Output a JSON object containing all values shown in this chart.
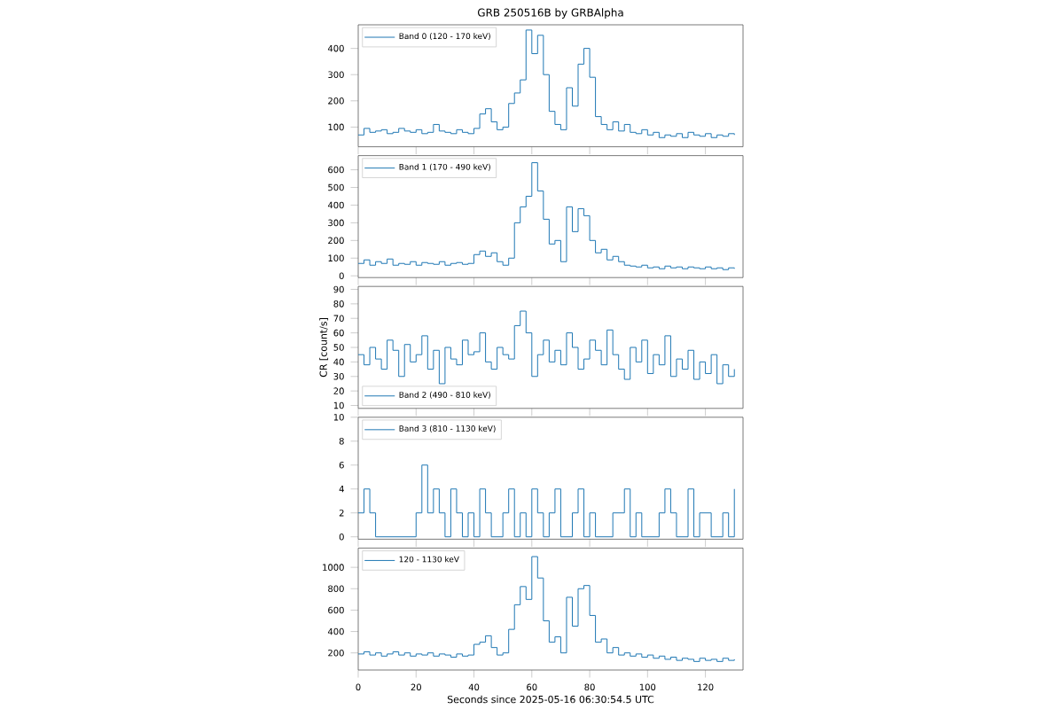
{
  "chart_data": [
    {
      "type": "step",
      "title": "GRB 250516B by GRBAlpha",
      "x": [
        0,
        2,
        4,
        6,
        8,
        10,
        12,
        14,
        16,
        18,
        20,
        22,
        24,
        26,
        28,
        30,
        32,
        34,
        36,
        38,
        40,
        42,
        44,
        46,
        48,
        50,
        52,
        54,
        56,
        58,
        60,
        62,
        64,
        66,
        68,
        70,
        72,
        74,
        76,
        78,
        80,
        82,
        84,
        86,
        88,
        90,
        92,
        94,
        96,
        98,
        100,
        102,
        104,
        106,
        108,
        110,
        112,
        114,
        116,
        118,
        120,
        122,
        124,
        126,
        128,
        130
      ],
      "series": [
        {
          "name": "Band 0 (120 - 170 keV)",
          "color": "#1f77b4",
          "values": [
            70,
            95,
            80,
            85,
            90,
            75,
            80,
            95,
            85,
            80,
            90,
            75,
            80,
            110,
            85,
            80,
            75,
            90,
            80,
            75,
            95,
            150,
            170,
            120,
            90,
            100,
            190,
            230,
            280,
            470,
            380,
            450,
            300,
            160,
            110,
            90,
            250,
            180,
            340,
            400,
            290,
            140,
            110,
            90,
            120,
            85,
            110,
            80,
            75,
            90,
            70,
            80,
            60,
            70,
            65,
            75,
            60,
            80,
            70,
            65,
            75,
            60,
            70,
            65,
            75,
            70
          ]
        }
      ],
      "xlim": [
        0,
        133
      ],
      "xticks": [
        0,
        20,
        40,
        60,
        80,
        100,
        120
      ],
      "ylim": [
        25,
        490
      ],
      "yticks": [
        100,
        200,
        300,
        400
      ],
      "legend": "top left",
      "tick_labels": "y"
    },
    {
      "type": "step",
      "x": [
        0,
        2,
        4,
        6,
        8,
        10,
        12,
        14,
        16,
        18,
        20,
        22,
        24,
        26,
        28,
        30,
        32,
        34,
        36,
        38,
        40,
        42,
        44,
        46,
        48,
        50,
        52,
        54,
        56,
        58,
        60,
        62,
        64,
        66,
        68,
        70,
        72,
        74,
        76,
        78,
        80,
        82,
        84,
        86,
        88,
        90,
        92,
        94,
        96,
        98,
        100,
        102,
        104,
        106,
        108,
        110,
        112,
        114,
        116,
        118,
        120,
        122,
        124,
        126,
        128,
        130
      ],
      "series": [
        {
          "name": "Band 1 (170 - 490 keV)",
          "color": "#1f77b4",
          "values": [
            70,
            90,
            60,
            80,
            70,
            95,
            60,
            70,
            65,
            80,
            60,
            75,
            70,
            65,
            80,
            60,
            70,
            75,
            65,
            70,
            120,
            140,
            110,
            130,
            80,
            60,
            100,
            300,
            390,
            450,
            640,
            480,
            320,
            180,
            200,
            80,
            390,
            250,
            380,
            340,
            200,
            130,
            150,
            90,
            110,
            80,
            60,
            55,
            50,
            60,
            45,
            50,
            40,
            55,
            45,
            50,
            40,
            50,
            45,
            40,
            50,
            40,
            45,
            35,
            45,
            40
          ]
        }
      ],
      "xlim": [
        0,
        133
      ],
      "xticks": [
        0,
        20,
        40,
        60,
        80,
        100,
        120
      ],
      "ylim": [
        -10,
        680
      ],
      "yticks": [
        0,
        100,
        200,
        300,
        400,
        500,
        600
      ],
      "legend": "top left",
      "tick_labels": "y"
    },
    {
      "type": "step",
      "ylabel": "CR [count/s]",
      "x": [
        0,
        2,
        4,
        6,
        8,
        10,
        12,
        14,
        16,
        18,
        20,
        22,
        24,
        26,
        28,
        30,
        32,
        34,
        36,
        38,
        40,
        42,
        44,
        46,
        48,
        50,
        52,
        54,
        56,
        58,
        60,
        62,
        64,
        66,
        68,
        70,
        72,
        74,
        76,
        78,
        80,
        82,
        84,
        86,
        88,
        90,
        92,
        94,
        96,
        98,
        100,
        102,
        104,
        106,
        108,
        110,
        112,
        114,
        116,
        118,
        120,
        122,
        124,
        126,
        128,
        130
      ],
      "series": [
        {
          "name": "Band 2 (490 - 810 keV)",
          "color": "#1f77b4",
          "values": [
            45,
            38,
            50,
            42,
            35,
            55,
            48,
            30,
            52,
            40,
            45,
            58,
            35,
            48,
            25,
            50,
            42,
            38,
            55,
            45,
            47,
            60,
            40,
            35,
            50,
            45,
            42,
            65,
            75,
            60,
            30,
            45,
            55,
            40,
            48,
            38,
            60,
            50,
            35,
            42,
            55,
            48,
            38,
            62,
            45,
            35,
            28,
            50,
            40,
            55,
            32,
            45,
            38,
            58,
            30,
            42,
            35,
            48,
            28,
            40,
            32,
            45,
            25,
            38,
            30,
            35
          ]
        }
      ],
      "xlim": [
        0,
        133
      ],
      "xticks": [
        0,
        20,
        40,
        60,
        80,
        100,
        120
      ],
      "ylim": [
        8,
        92
      ],
      "yticks": [
        10,
        20,
        30,
        40,
        50,
        60,
        70,
        80,
        90
      ],
      "legend": "bottom left",
      "tick_labels": "y"
    },
    {
      "type": "step",
      "x": [
        0,
        2,
        4,
        6,
        8,
        10,
        12,
        14,
        16,
        18,
        20,
        22,
        24,
        26,
        28,
        30,
        32,
        34,
        36,
        38,
        40,
        42,
        44,
        46,
        48,
        50,
        52,
        54,
        56,
        58,
        60,
        62,
        64,
        66,
        68,
        70,
        72,
        74,
        76,
        78,
        80,
        82,
        84,
        86,
        88,
        90,
        92,
        94,
        96,
        98,
        100,
        102,
        104,
        106,
        108,
        110,
        112,
        114,
        116,
        118,
        120,
        122,
        124,
        126,
        128,
        130
      ],
      "series": [
        {
          "name": "Band 3 (810 - 1130 keV)",
          "color": "#1f77b4",
          "values": [
            2,
            4,
            2,
            0,
            0,
            0,
            0,
            0,
            0,
            0,
            2,
            6,
            2,
            4,
            2,
            0,
            4,
            2,
            0,
            2,
            0,
            4,
            2,
            0,
            0,
            2,
            4,
            0,
            2,
            0,
            4,
            2,
            0,
            2,
            4,
            0,
            0,
            2,
            4,
            0,
            2,
            0,
            0,
            0,
            2,
            2,
            4,
            0,
            2,
            0,
            0,
            0,
            2,
            4,
            2,
            0,
            0,
            4,
            0,
            2,
            2,
            0,
            0,
            2,
            0,
            4
          ]
        }
      ],
      "xlim": [
        0,
        133
      ],
      "xticks": [
        0,
        20,
        40,
        60,
        80,
        100,
        120
      ],
      "ylim": [
        -0.2,
        10
      ],
      "yticks": [
        0,
        2,
        4,
        6,
        8,
        10
      ],
      "legend": "top left",
      "tick_labels": "y"
    },
    {
      "type": "step",
      "xlabel": "Seconds since 2025-05-16 06:30:54.5 UTC",
      "x": [
        0,
        2,
        4,
        6,
        8,
        10,
        12,
        14,
        16,
        18,
        20,
        22,
        24,
        26,
        28,
        30,
        32,
        34,
        36,
        38,
        40,
        42,
        44,
        46,
        48,
        50,
        52,
        54,
        56,
        58,
        60,
        62,
        64,
        66,
        68,
        70,
        72,
        74,
        76,
        78,
        80,
        82,
        84,
        86,
        88,
        90,
        92,
        94,
        96,
        98,
        100,
        102,
        104,
        106,
        108,
        110,
        112,
        114,
        116,
        118,
        120,
        122,
        124,
        126,
        128,
        130
      ],
      "series": [
        {
          "name": "120 - 1130 keV",
          "color": "#1f77b4",
          "values": [
            190,
            210,
            180,
            200,
            170,
            190,
            210,
            180,
            200,
            170,
            190,
            180,
            200,
            170,
            190,
            180,
            160,
            190,
            170,
            180,
            280,
            300,
            360,
            250,
            180,
            200,
            420,
            650,
            820,
            700,
            1100,
            900,
            500,
            300,
            350,
            200,
            720,
            450,
            800,
            830,
            550,
            300,
            330,
            200,
            250,
            180,
            200,
            170,
            190,
            160,
            180,
            150,
            170,
            140,
            160,
            130,
            150,
            140,
            120,
            150,
            130,
            140,
            120,
            150,
            130,
            140
          ]
        }
      ],
      "xlim": [
        0,
        133
      ],
      "xticks": [
        0,
        20,
        40,
        60,
        80,
        100,
        120
      ],
      "ylim": [
        40,
        1180
      ],
      "yticks": [
        200,
        400,
        600,
        800,
        1000
      ],
      "legend": "top left"
    }
  ]
}
